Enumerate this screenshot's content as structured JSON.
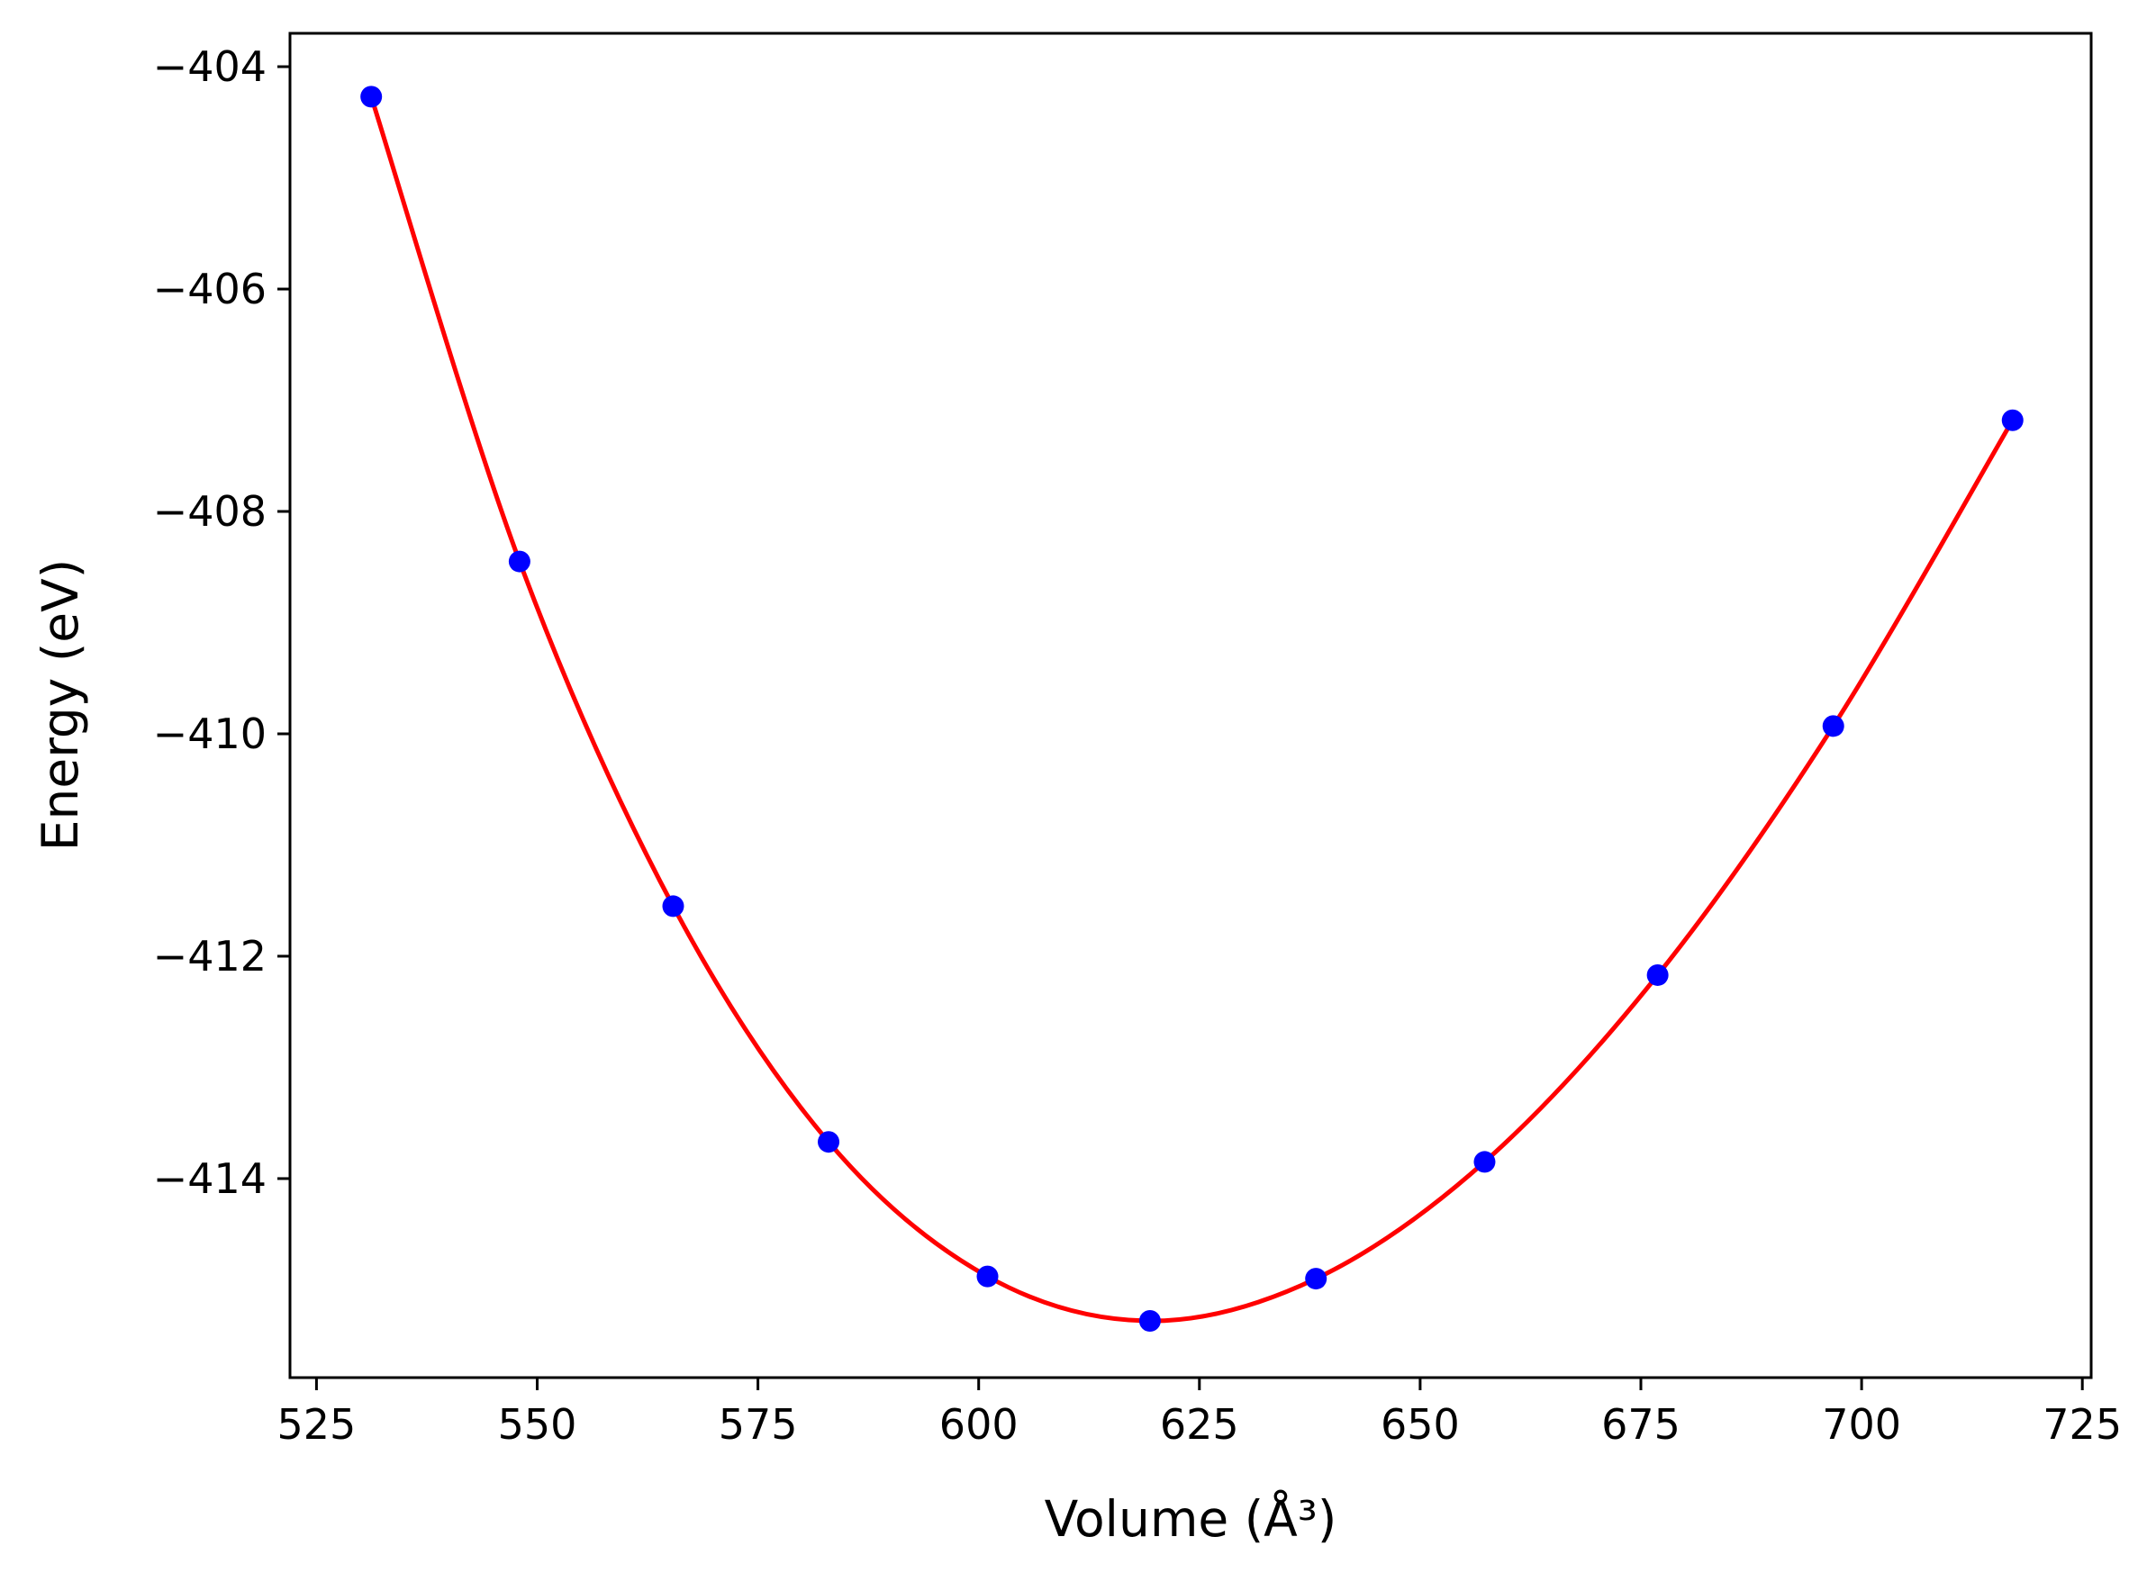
{
  "chart_data": {
    "type": "scatter",
    "title": "",
    "xlabel": "Volume (Å³)",
    "ylabel": "Energy (eV)",
    "xlim": [
      522,
      726
    ],
    "ylim": [
      -415.79,
      -403.7
    ],
    "x_ticks": [
      525,
      550,
      575,
      600,
      625,
      650,
      675,
      700,
      725
    ],
    "x_tick_labels": [
      "525",
      "550",
      "575",
      "600",
      "625",
      "650",
      "675",
      "700",
      "725"
    ],
    "y_ticks": [
      -404,
      -406,
      -408,
      -410,
      -412,
      -414
    ],
    "y_tick_labels": [
      "−404",
      "−406",
      "−408",
      "−410",
      "−412",
      "−414"
    ],
    "grid": false,
    "series": [
      {
        "kind": "points",
        "color": "#0000ff",
        "x": [
          531.2,
          548.0,
          565.4,
          583.0,
          601.0,
          619.4,
          638.2,
          657.3,
          676.9,
          696.8,
          717.1
        ],
        "y": [
          -404.27,
          -408.45,
          -411.55,
          -413.67,
          -414.88,
          -415.28,
          -414.9,
          -413.85,
          -412.17,
          -409.93,
          -407.18
        ]
      },
      {
        "kind": "fit-curve",
        "color": "#ff0000",
        "x": [
          531.2,
          548.0,
          565.4,
          583.0,
          601.0,
          619.4,
          638.2,
          657.3,
          676.9,
          696.8,
          717.1
        ],
        "y": [
          -404.27,
          -408.45,
          -411.55,
          -413.67,
          -414.88,
          -415.28,
          -414.9,
          -413.85,
          -412.17,
          -409.93,
          -407.18
        ]
      }
    ]
  }
}
